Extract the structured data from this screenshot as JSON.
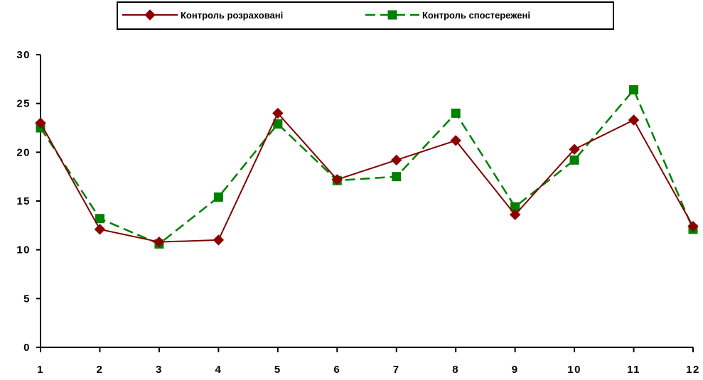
{
  "chart_data": {
    "type": "line",
    "title": "",
    "xlabel": "",
    "ylabel": "",
    "categories": [
      "1",
      "2",
      "3",
      "4",
      "5",
      "6",
      "7",
      "8",
      "9",
      "10",
      "11",
      "12"
    ],
    "ylim": [
      0,
      30
    ],
    "yticks": [
      "0",
      "5",
      "10",
      "15",
      "20",
      "25",
      "30"
    ],
    "grid": false,
    "legend_position": "top-center",
    "series": [
      {
        "name": "Контроль розраховані",
        "values": [
          23.0,
          12.1,
          10.8,
          11.0,
          24.0,
          17.2,
          19.2,
          21.2,
          13.6,
          20.3,
          23.3,
          12.4
        ],
        "color": "#800000",
        "line_style": "solid",
        "marker": "diamond",
        "marker_color": "#8B0000"
      },
      {
        "name": "Контроль спостережені",
        "values": [
          22.5,
          13.2,
          10.6,
          15.4,
          22.9,
          17.1,
          17.5,
          24.0,
          14.4,
          19.2,
          26.4,
          12.1
        ],
        "color": "#008000",
        "line_style": "dashed",
        "marker": "square",
        "marker_color": "#008000"
      }
    ]
  }
}
